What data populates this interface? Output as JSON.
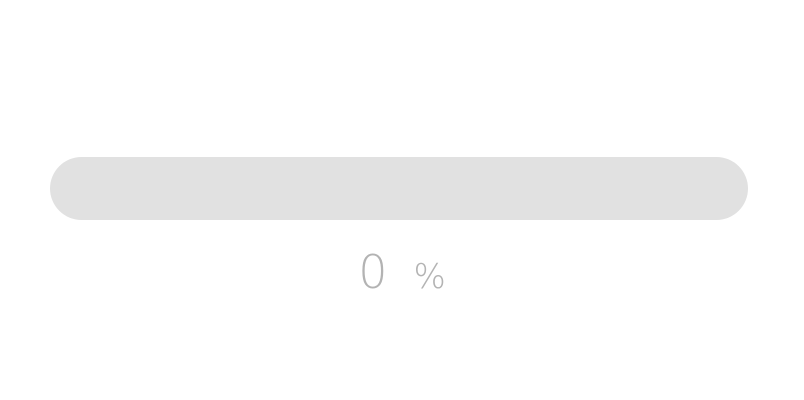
{
  "progress": {
    "value_label": "0",
    "unit_label": "%",
    "fraction": 0,
    "track_color": "#e1e1e1",
    "fill_color": "#bdbdbd",
    "text_color": "#b3b3b3"
  }
}
